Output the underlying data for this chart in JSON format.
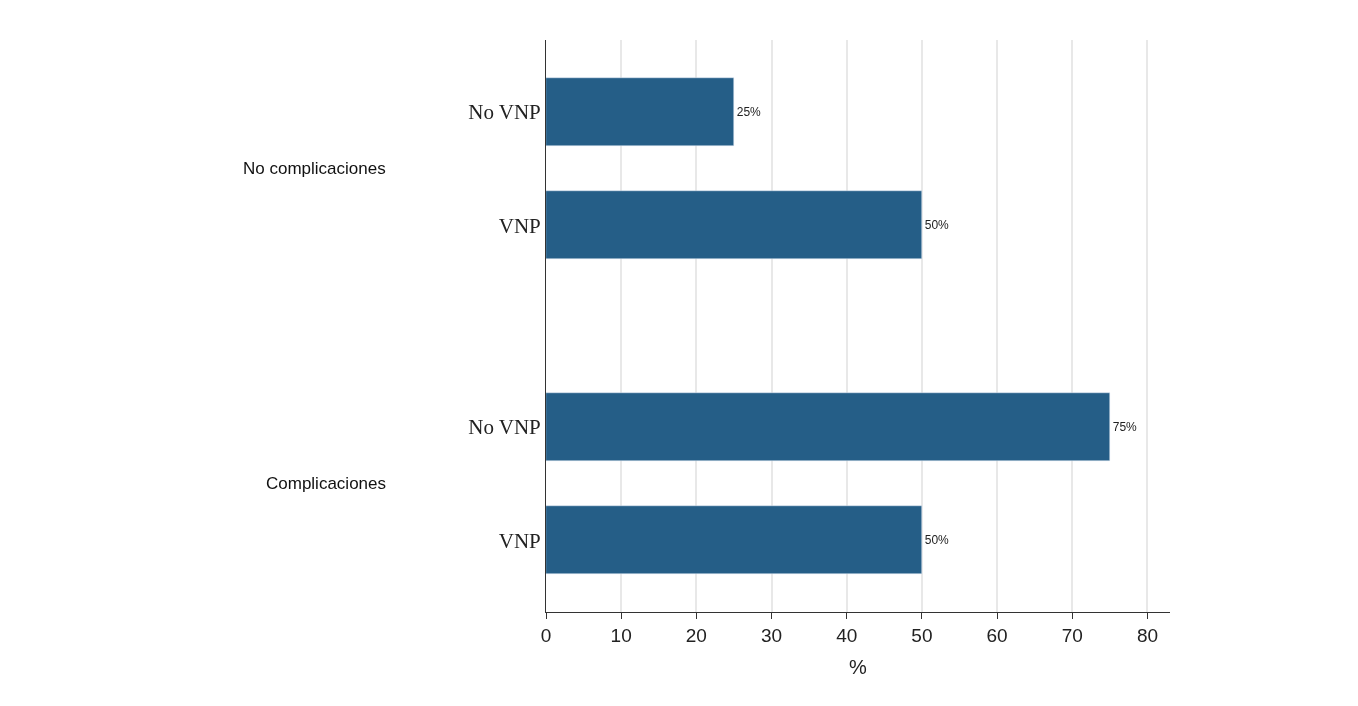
{
  "chart_data": {
    "type": "bar",
    "orientation": "horizontal",
    "categories": [
      "No VNP",
      "VNP",
      "No VNP",
      "VNP"
    ],
    "values": [
      25,
      50,
      75,
      50
    ],
    "value_labels": [
      "25%",
      "50%",
      "75%",
      "50%"
    ],
    "color": "#255e87",
    "xlabel": "%",
    "xlim": [
      0,
      83
    ],
    "xticks": [
      0,
      10,
      20,
      30,
      40,
      50,
      60,
      70,
      80
    ],
    "grid": "x",
    "legend": false,
    "annotations": [
      "No complicaciones",
      "Complicaciones"
    ]
  }
}
